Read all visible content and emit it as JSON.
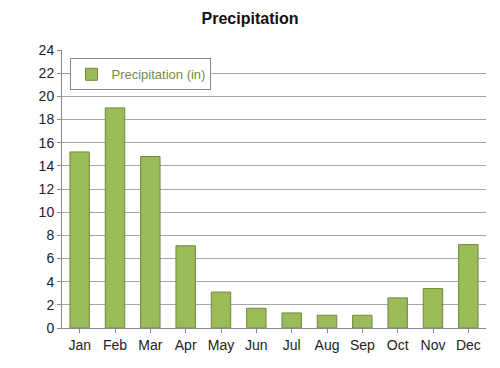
{
  "chart_data": {
    "type": "bar",
    "title": "Precipitation",
    "categories": [
      "Jan",
      "Feb",
      "Mar",
      "Apr",
      "May",
      "Jun",
      "Jul",
      "Aug",
      "Sep",
      "Oct",
      "Nov",
      "Dec"
    ],
    "series": [
      {
        "name": "Precipitation (in)",
        "color": "#9bbb59",
        "values": [
          15.2,
          19.0,
          14.8,
          7.1,
          3.1,
          1.7,
          1.3,
          1.1,
          1.1,
          2.6,
          3.4,
          7.2
        ]
      }
    ],
    "ylim": [
      0,
      24
    ],
    "yticks": [
      0,
      2,
      4,
      6,
      8,
      10,
      12,
      14,
      16,
      18,
      20,
      22,
      24
    ],
    "grid": true,
    "legend": "top-left"
  }
}
